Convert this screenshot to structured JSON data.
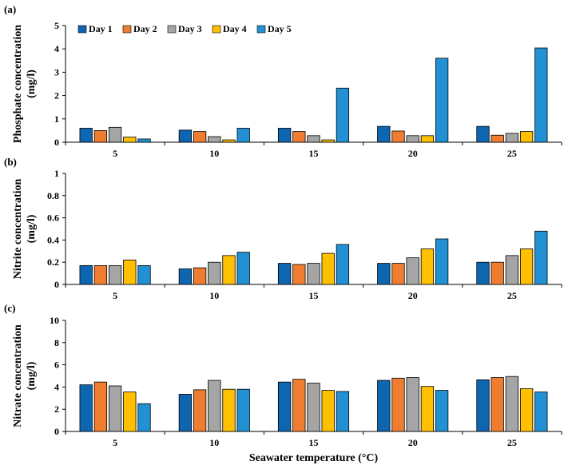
{
  "chart_data": [
    {
      "type": "bar",
      "panel_label": "(a)",
      "ylabel": [
        "Phosphate concentration",
        "(mg/l)"
      ],
      "xlabel": "",
      "categories": [
        "5",
        "10",
        "15",
        "20",
        "25"
      ],
      "ylim": [
        0,
        5
      ],
      "yticks": [
        0,
        1,
        2,
        3,
        4,
        5
      ],
      "legend": "top-left",
      "series": [
        {
          "name": "Day 1",
          "color": "#0e65b0",
          "values": [
            0.6,
            0.52,
            0.6,
            0.68,
            0.68
          ]
        },
        {
          "name": "Day 2",
          "color": "#ee7d31",
          "values": [
            0.5,
            0.46,
            0.46,
            0.48,
            0.3
          ]
        },
        {
          "name": "Day 3",
          "color": "#a5a5a5",
          "values": [
            0.64,
            0.24,
            0.28,
            0.28,
            0.38
          ]
        },
        {
          "name": "Day 4",
          "color": "#ffc000",
          "values": [
            0.22,
            0.1,
            0.1,
            0.28,
            0.46
          ]
        },
        {
          "name": "Day 5",
          "color": "#2191d3",
          "values": [
            0.14,
            0.6,
            2.32,
            3.6,
            4.04
          ]
        }
      ]
    },
    {
      "type": "bar",
      "panel_label": "(b)",
      "ylabel": [
        "Nitrite concentration",
        "(mg/l)"
      ],
      "xlabel": "",
      "categories": [
        "5",
        "10",
        "15",
        "20",
        "25"
      ],
      "ylim": [
        0,
        1
      ],
      "yticks": [
        0,
        0.2,
        0.4,
        0.6,
        0.8,
        1
      ],
      "series": [
        {
          "name": "Day 1",
          "color": "#0e65b0",
          "values": [
            0.17,
            0.14,
            0.19,
            0.19,
            0.2
          ]
        },
        {
          "name": "Day 2",
          "color": "#ee7d31",
          "values": [
            0.17,
            0.15,
            0.18,
            0.19,
            0.2
          ]
        },
        {
          "name": "Day 3",
          "color": "#a5a5a5",
          "values": [
            0.17,
            0.2,
            0.19,
            0.24,
            0.26
          ]
        },
        {
          "name": "Day 4",
          "color": "#ffc000",
          "values": [
            0.22,
            0.26,
            0.28,
            0.32,
            0.32
          ]
        },
        {
          "name": "Day 5",
          "color": "#2191d3",
          "values": [
            0.17,
            0.29,
            0.36,
            0.41,
            0.48
          ]
        }
      ]
    },
    {
      "type": "bar",
      "panel_label": "(c)",
      "ylabel": [
        "Nitrate concentration",
        "(mg/l)"
      ],
      "xlabel": "Seawater temperature (°C)",
      "categories": [
        "5",
        "10",
        "15",
        "20",
        "25"
      ],
      "ylim": [
        0,
        10
      ],
      "yticks": [
        0,
        2,
        4,
        6,
        8,
        10
      ],
      "series": [
        {
          "name": "Day 1",
          "color": "#0e65b0",
          "values": [
            4.2,
            3.35,
            4.45,
            4.6,
            4.65
          ]
        },
        {
          "name": "Day 2",
          "color": "#ee7d31",
          "values": [
            4.45,
            3.75,
            4.7,
            4.8,
            4.85
          ]
        },
        {
          "name": "Day 3",
          "color": "#a5a5a5",
          "values": [
            4.1,
            4.6,
            4.35,
            4.85,
            4.95
          ]
        },
        {
          "name": "Day 4",
          "color": "#ffc000",
          "values": [
            3.55,
            3.8,
            3.7,
            4.05,
            3.85
          ]
        },
        {
          "name": "Day 5",
          "color": "#2191d3",
          "values": [
            2.5,
            3.8,
            3.6,
            3.7,
            3.55
          ]
        }
      ]
    }
  ]
}
